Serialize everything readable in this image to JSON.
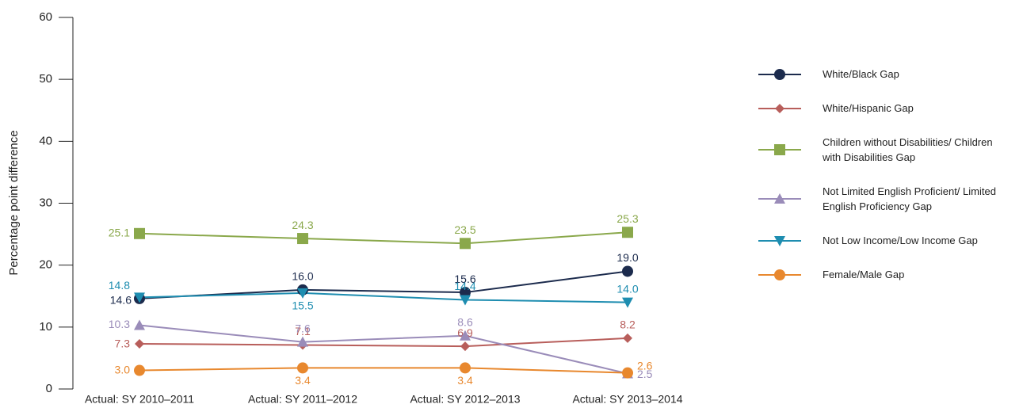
{
  "chart_data": {
    "type": "line",
    "y_label": "Percentage point difference",
    "categories": [
      "Actual: SY 2010–2011",
      "Actual: SY 2011–2012",
      "Actual: SY 2012–2013",
      "Actual: SY 2013–2014"
    ],
    "ylim": [
      0,
      60
    ],
    "yticks": [
      0,
      10,
      20,
      30,
      40,
      50,
      60
    ],
    "series": [
      {
        "name": "White/Black Gap",
        "color": "#1c2b4d",
        "marker": "circle",
        "values": [
          14.6,
          16.0,
          15.6,
          19.0
        ],
        "value_labels": [
          "14.6",
          "16.0",
          "15.6",
          "19.0"
        ]
      },
      {
        "name": "White/Hispanic Gap",
        "color": "#b85e5b",
        "marker": "diamond",
        "values": [
          7.3,
          7.1,
          6.9,
          8.2
        ],
        "value_labels": [
          "7.3",
          "7.1",
          "6.9",
          "8.2"
        ]
      },
      {
        "name": "Children without Disabilities/ Children with Disabilities Gap",
        "color": "#8aa84b",
        "marker": "square",
        "values": [
          25.1,
          24.3,
          23.5,
          25.3
        ],
        "value_labels": [
          "25.1",
          "24.3",
          "23.5",
          "25.3"
        ]
      },
      {
        "name": "Not Limited English Proficient/ Limited English Proficiency Gap",
        "color": "#9a8cb9",
        "marker": "triangle-up",
        "values": [
          10.3,
          7.6,
          8.6,
          2.5
        ],
        "value_labels": [
          "10.3",
          "7.6",
          "8.6",
          "2.5"
        ]
      },
      {
        "name": "Not Low Income/Low Income Gap",
        "color": "#1e8db0",
        "marker": "triangle-down",
        "values": [
          14.8,
          15.5,
          14.4,
          14.0
        ],
        "value_labels": [
          "14.8",
          "15.5",
          "14.4",
          "14.0"
        ]
      },
      {
        "name": "Female/Male Gap",
        "color": "#e8882e",
        "marker": "circle",
        "values": [
          3.0,
          3.4,
          3.4,
          2.6
        ],
        "value_labels": [
          "3.0",
          "3.4",
          "3.4",
          "2.6"
        ]
      }
    ]
  }
}
